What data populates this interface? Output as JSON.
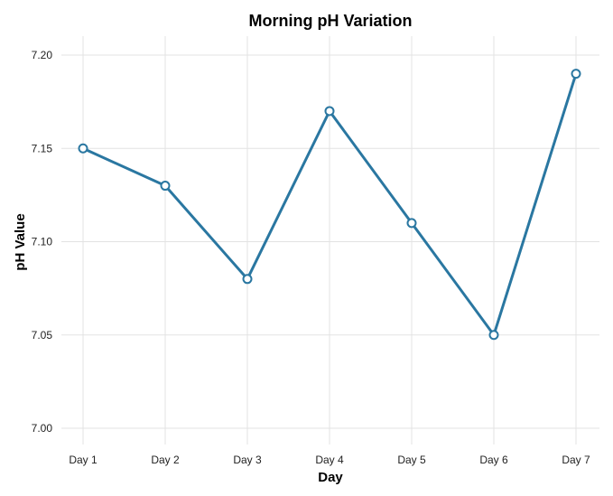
{
  "chart_data": {
    "type": "line",
    "title": "Morning pH Variation",
    "xlabel": "Day",
    "ylabel": "pH Value",
    "categories": [
      "Day 1",
      "Day 2",
      "Day 3",
      "Day 4",
      "Day 5",
      "Day 6",
      "Day 7"
    ],
    "values": [
      7.15,
      7.13,
      7.08,
      7.17,
      7.11,
      7.05,
      7.19
    ],
    "ylim": [
      7.0,
      7.2
    ],
    "yticks": [
      "7.00",
      "7.05",
      "7.10",
      "7.15",
      "7.20"
    ],
    "grid": true,
    "line_color": "#2a77a1",
    "marker": "open-circle"
  }
}
